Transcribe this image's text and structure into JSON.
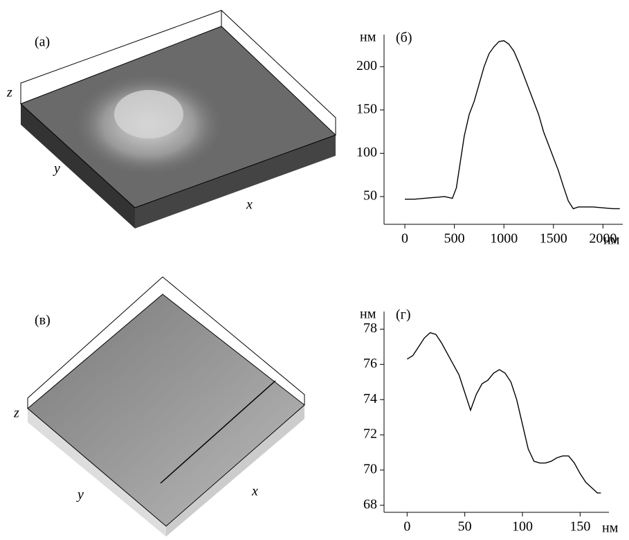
{
  "images": [
    {
      "label": "(a)",
      "z_label": "z",
      "y_label": "y",
      "x_label": "x"
    },
    {
      "label": "(в)",
      "z_label": "z",
      "y_label": "y",
      "x_label": "x"
    }
  ],
  "chart_data": [
    {
      "type": "line",
      "title": "(б)",
      "y_unit": "нм",
      "x_unit": "нм",
      "color": "#000000",
      "x": [
        0,
        100,
        200,
        300,
        400,
        480,
        520,
        560,
        600,
        650,
        700,
        750,
        800,
        850,
        900,
        950,
        1000,
        1050,
        1100,
        1150,
        1200,
        1250,
        1300,
        1350,
        1400,
        1450,
        1500,
        1550,
        1600,
        1650,
        1700,
        1750,
        1800,
        1900,
        2000,
        2100,
        2170
      ],
      "values": [
        47,
        47,
        48,
        49,
        50,
        48,
        60,
        90,
        120,
        145,
        160,
        180,
        200,
        215,
        223,
        229,
        230,
        226,
        218,
        205,
        190,
        175,
        160,
        145,
        125,
        110,
        95,
        80,
        62,
        45,
        36,
        38,
        38,
        38,
        37,
        36,
        36
      ],
      "xlim": [
        -210,
        2200
      ],
      "ylim": [
        18,
        237
      ],
      "xticks": [
        0,
        500,
        1000,
        1500,
        2000
      ],
      "yticks": [
        50,
        100,
        150,
        200
      ]
    },
    {
      "type": "line",
      "title": "(г)",
      "y_unit": "нм",
      "x_unit": "нм",
      "color": "#000000",
      "x": [
        0,
        5,
        10,
        15,
        20,
        25,
        30,
        35,
        40,
        45,
        50,
        55,
        60,
        65,
        70,
        75,
        80,
        85,
        90,
        95,
        100,
        105,
        110,
        115,
        120,
        125,
        130,
        135,
        140,
        145,
        150,
        155,
        160,
        165,
        168
      ],
      "values": [
        76.3,
        76.5,
        77,
        77.5,
        77.8,
        77.7,
        77.2,
        76.6,
        76,
        75.4,
        74.4,
        73.4,
        74.3,
        74.9,
        75.1,
        75.5,
        75.7,
        75.5,
        75,
        74,
        72.6,
        71.2,
        70.5,
        70.4,
        70.4,
        70.5,
        70.7,
        70.8,
        70.8,
        70.4,
        69.8,
        69.3,
        69,
        68.7,
        68.7
      ],
      "xlim": [
        -20,
        175
      ],
      "ylim": [
        67.6,
        79
      ],
      "xticks": [
        0,
        50,
        100,
        150
      ],
      "yticks": [
        68,
        70,
        72,
        74,
        76,
        78
      ]
    }
  ]
}
